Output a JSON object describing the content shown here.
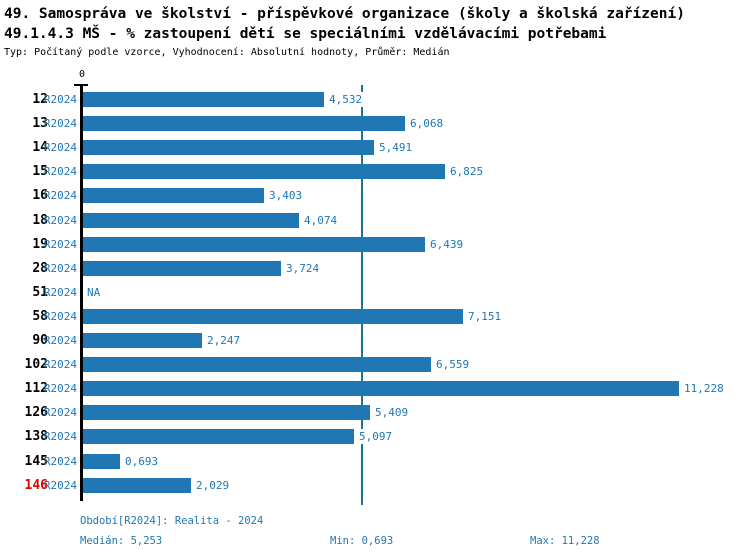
{
  "header": {
    "title1": "49. Samospráva ve školství - příspěvkové organizace (školy a školská zařízení)",
    "title2": "49.1.4.3 MŠ - % zastoupení dětí se speciálními vzdělávacími potřebami",
    "meta": "Typ: Počítaný podle vzorce, Vyhodnocení: Absolutní hodnoty, Průměr: Medián"
  },
  "chart_data": {
    "type": "bar",
    "orientation": "horizontal",
    "title": "49.1.4.3 MŠ - % zastoupení dětí se speciálními vzdělávacími potřebami",
    "x_axis_zero_label": "0",
    "value_axis_range": [
      0,
      11.228
    ],
    "median_value": 5.253,
    "legend_position": "none",
    "grid": false,
    "colors": {
      "bar": "#2077b4",
      "median_line": "#1b7390",
      "value_text": "#1f77b4",
      "row_id_text": "#000000",
      "highlight_row_id_text": "#e00000"
    },
    "categories": [
      "12",
      "13",
      "14",
      "15",
      "16",
      "18",
      "19",
      "28",
      "51",
      "58",
      "90",
      "102",
      "112",
      "126",
      "138",
      "145",
      "146"
    ],
    "rows": [
      {
        "id": "12",
        "period": "R2024",
        "value": 4.532,
        "label": "4,532",
        "highlight": false
      },
      {
        "id": "13",
        "period": "R2024",
        "value": 6.068,
        "label": "6,068",
        "highlight": false
      },
      {
        "id": "14",
        "period": "R2024",
        "value": 5.491,
        "label": "5,491",
        "highlight": false
      },
      {
        "id": "15",
        "period": "R2024",
        "value": 6.825,
        "label": "6,825",
        "highlight": false
      },
      {
        "id": "16",
        "period": "R2024",
        "value": 3.403,
        "label": "3,403",
        "highlight": false
      },
      {
        "id": "18",
        "period": "R2024",
        "value": 4.074,
        "label": "4,074",
        "highlight": false
      },
      {
        "id": "19",
        "period": "R2024",
        "value": 6.439,
        "label": "6,439",
        "highlight": false
      },
      {
        "id": "28",
        "period": "R2024",
        "value": 3.724,
        "label": "3,724",
        "highlight": false
      },
      {
        "id": "51",
        "period": "R2024",
        "value": null,
        "label": "NA",
        "highlight": false
      },
      {
        "id": "58",
        "period": "R2024",
        "value": 7.151,
        "label": "7,151",
        "highlight": false
      },
      {
        "id": "90",
        "period": "R2024",
        "value": 2.247,
        "label": "2,247",
        "highlight": false
      },
      {
        "id": "102",
        "period": "R2024",
        "value": 6.559,
        "label": "6,559",
        "highlight": false
      },
      {
        "id": "112",
        "period": "R2024",
        "value": 11.228,
        "label": "11,228",
        "highlight": false
      },
      {
        "id": "126",
        "period": "R2024",
        "value": 5.409,
        "label": "5,409",
        "highlight": false
      },
      {
        "id": "138",
        "period": "R2024",
        "value": 5.097,
        "label": "5,097",
        "highlight": false
      },
      {
        "id": "145",
        "period": "R2024",
        "value": 0.693,
        "label": "0,693",
        "highlight": false
      },
      {
        "id": "146",
        "period": "R2024",
        "value": 2.029,
        "label": "2,029",
        "highlight": true
      }
    ]
  },
  "footer": {
    "period": "Období[R2024]: Realita - 2024",
    "median": "Medián: 5,253",
    "min": "Min: 0,693",
    "max": "Max: 11,228"
  }
}
